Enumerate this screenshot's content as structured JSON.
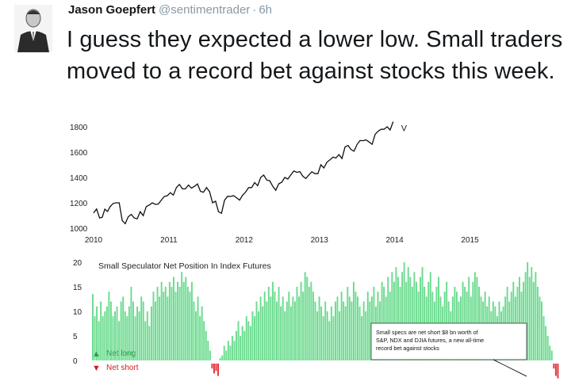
{
  "tweet": {
    "author_name": "Jason Goepfert",
    "handle": "@sentimentrader",
    "separator": "·",
    "time": "6h",
    "text": "I guess they expected a lower low. Small traders moved to a record bet against stocks this week.",
    "avatar_icon": "person-avatar-icon"
  },
  "chart_data": [
    {
      "type": "line",
      "title": "",
      "x_tick_labels": [
        "2010",
        "2011",
        "2012",
        "2013",
        "2014",
        "2015"
      ],
      "y_tick_labels": [
        "1000",
        "1200",
        "1400",
        "1600",
        "1800"
      ],
      "ylim": [
        1000,
        1800
      ],
      "xlim": [
        2010.0,
        2015.5
      ],
      "end_marker": "V",
      "series": [
        {
          "x": [
            2010.0,
            2010.08,
            2010.15,
            2010.22,
            2010.3,
            2010.38,
            2010.46,
            2010.54,
            2010.62,
            2010.7,
            2010.78,
            2010.86,
            2010.94,
            2011.02,
            2011.1,
            2011.18,
            2011.26,
            2011.34,
            2011.42,
            2011.5,
            2011.58,
            2011.66,
            2011.74,
            2011.82,
            2011.9,
            2011.98,
            2012.06,
            2012.14,
            2012.22,
            2012.3,
            2012.38,
            2012.46,
            2012.54,
            2012.62,
            2012.7,
            2012.78,
            2012.86,
            2012.94,
            2013.02,
            2013.1,
            2013.18,
            2013.26,
            2013.34,
            2013.42,
            2013.5,
            2013.58,
            2013.66,
            2013.74,
            2013.82,
            2013.9,
            2013.98
          ],
          "y": [
            1120,
            1080,
            1150,
            1170,
            1200,
            1060,
            1090,
            1080,
            1130,
            1170,
            1200,
            1190,
            1250,
            1280,
            1320,
            1310,
            1340,
            1330,
            1290,
            1320,
            1200,
            1130,
            1220,
            1250,
            1240,
            1260,
            1320,
            1360,
            1400,
            1380,
            1330,
            1350,
            1400,
            1420,
            1440,
            1410,
            1420,
            1430,
            1500,
            1520,
            1560,
            1580,
            1640,
            1620,
            1660,
            1690,
            1680,
            1740,
            1780,
            1800,
            1840
          ]
        }
      ]
    },
    {
      "type": "bar",
      "title": "Small Speculator Net Position In Index Futures",
      "y_tick_labels": [
        "0",
        "5",
        "10",
        "15",
        "20"
      ],
      "ylim": [
        -3,
        20
      ],
      "legend": [
        {
          "label": "Net long",
          "color": "#2e9e4b",
          "symbol": "▲"
        },
        {
          "label": "Net short",
          "color": "#cc1f1f",
          "symbol": "▼"
        }
      ],
      "annotation": "Small specs are net short $8 bn worth of S&P, NDX and DJIA futures, a new all-time record bet against stocks",
      "positive_color": "#6cdb8f",
      "negative_color": "#e0333a",
      "values": [
        13.5,
        9,
        11,
        8,
        12,
        9,
        10,
        11,
        14,
        12,
        9,
        10,
        11,
        8,
        12,
        13,
        10,
        9,
        11,
        15,
        12,
        9,
        11,
        10,
        13,
        12,
        8,
        10,
        7,
        11,
        14,
        12,
        15,
        13,
        16,
        14,
        15,
        13,
        16,
        15,
        17,
        14,
        16,
        15,
        18,
        16,
        17,
        15,
        14,
        16,
        12,
        10,
        13,
        9,
        11,
        8,
        6,
        4,
        2,
        -1,
        -2,
        -1.5,
        -2.5,
        0.5,
        1,
        3,
        2,
        4,
        3,
        5,
        4,
        6,
        8,
        5,
        7,
        6,
        9,
        8,
        7,
        10,
        9,
        12,
        10,
        13,
        11,
        14,
        12,
        15,
        13,
        16,
        14,
        12,
        15,
        11,
        13,
        10,
        12,
        14,
        11,
        13,
        12,
        15,
        13,
        16,
        14,
        18,
        17,
        15,
        16,
        14,
        12,
        10,
        13,
        11,
        9,
        12,
        10,
        8,
        11,
        9,
        12,
        13,
        10,
        14,
        12,
        11,
        15,
        13,
        12,
        16,
        14,
        13,
        11,
        9,
        12,
        10,
        14,
        12,
        13,
        15,
        11,
        14,
        12,
        16,
        15,
        13,
        17,
        14,
        18,
        16,
        19,
        17,
        15,
        18,
        20,
        16,
        19,
        17,
        15,
        18,
        16,
        14,
        17,
        19,
        15,
        13,
        16,
        18,
        14,
        12,
        15,
        17,
        13,
        11,
        14,
        16,
        12,
        10,
        13,
        15,
        14,
        12,
        13,
        16,
        15,
        14,
        17,
        13,
        16,
        18,
        17,
        15,
        13,
        12,
        14,
        11,
        13,
        10,
        12,
        11,
        9,
        12,
        10,
        11,
        13,
        15,
        12,
        14,
        16,
        13,
        15,
        17,
        14,
        16,
        18,
        20,
        17,
        19,
        16,
        18,
        15,
        13,
        12,
        9,
        7,
        5,
        3,
        2,
        -1,
        -2.5,
        -3
      ]
    }
  ]
}
